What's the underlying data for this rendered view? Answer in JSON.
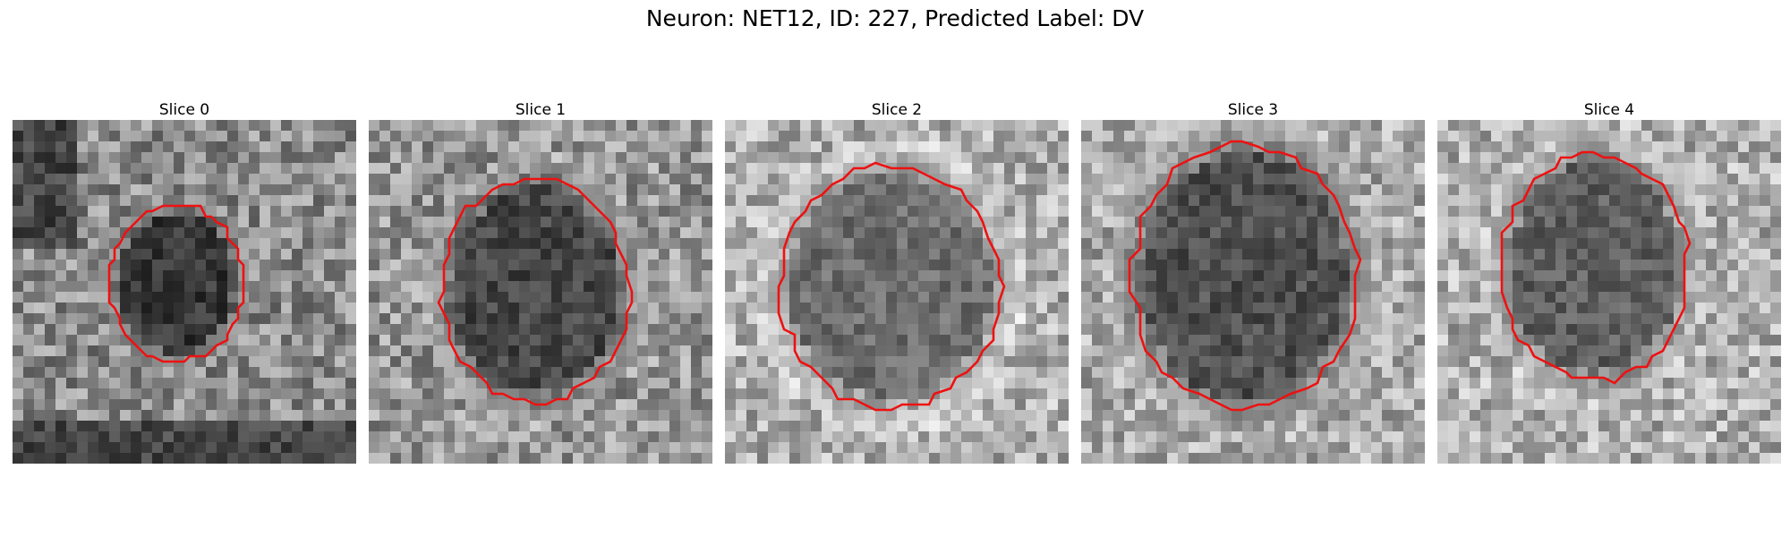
{
  "figure": {
    "title": "Neuron: NET12, ID: 227, Predicted Label: DV"
  },
  "contour_color": "#ee1111",
  "panels": [
    {
      "label": "Slice 0"
    },
    {
      "label": "Slice 1"
    },
    {
      "label": "Slice 2"
    },
    {
      "label": "Slice 3"
    },
    {
      "label": "Slice 4"
    }
  ]
}
